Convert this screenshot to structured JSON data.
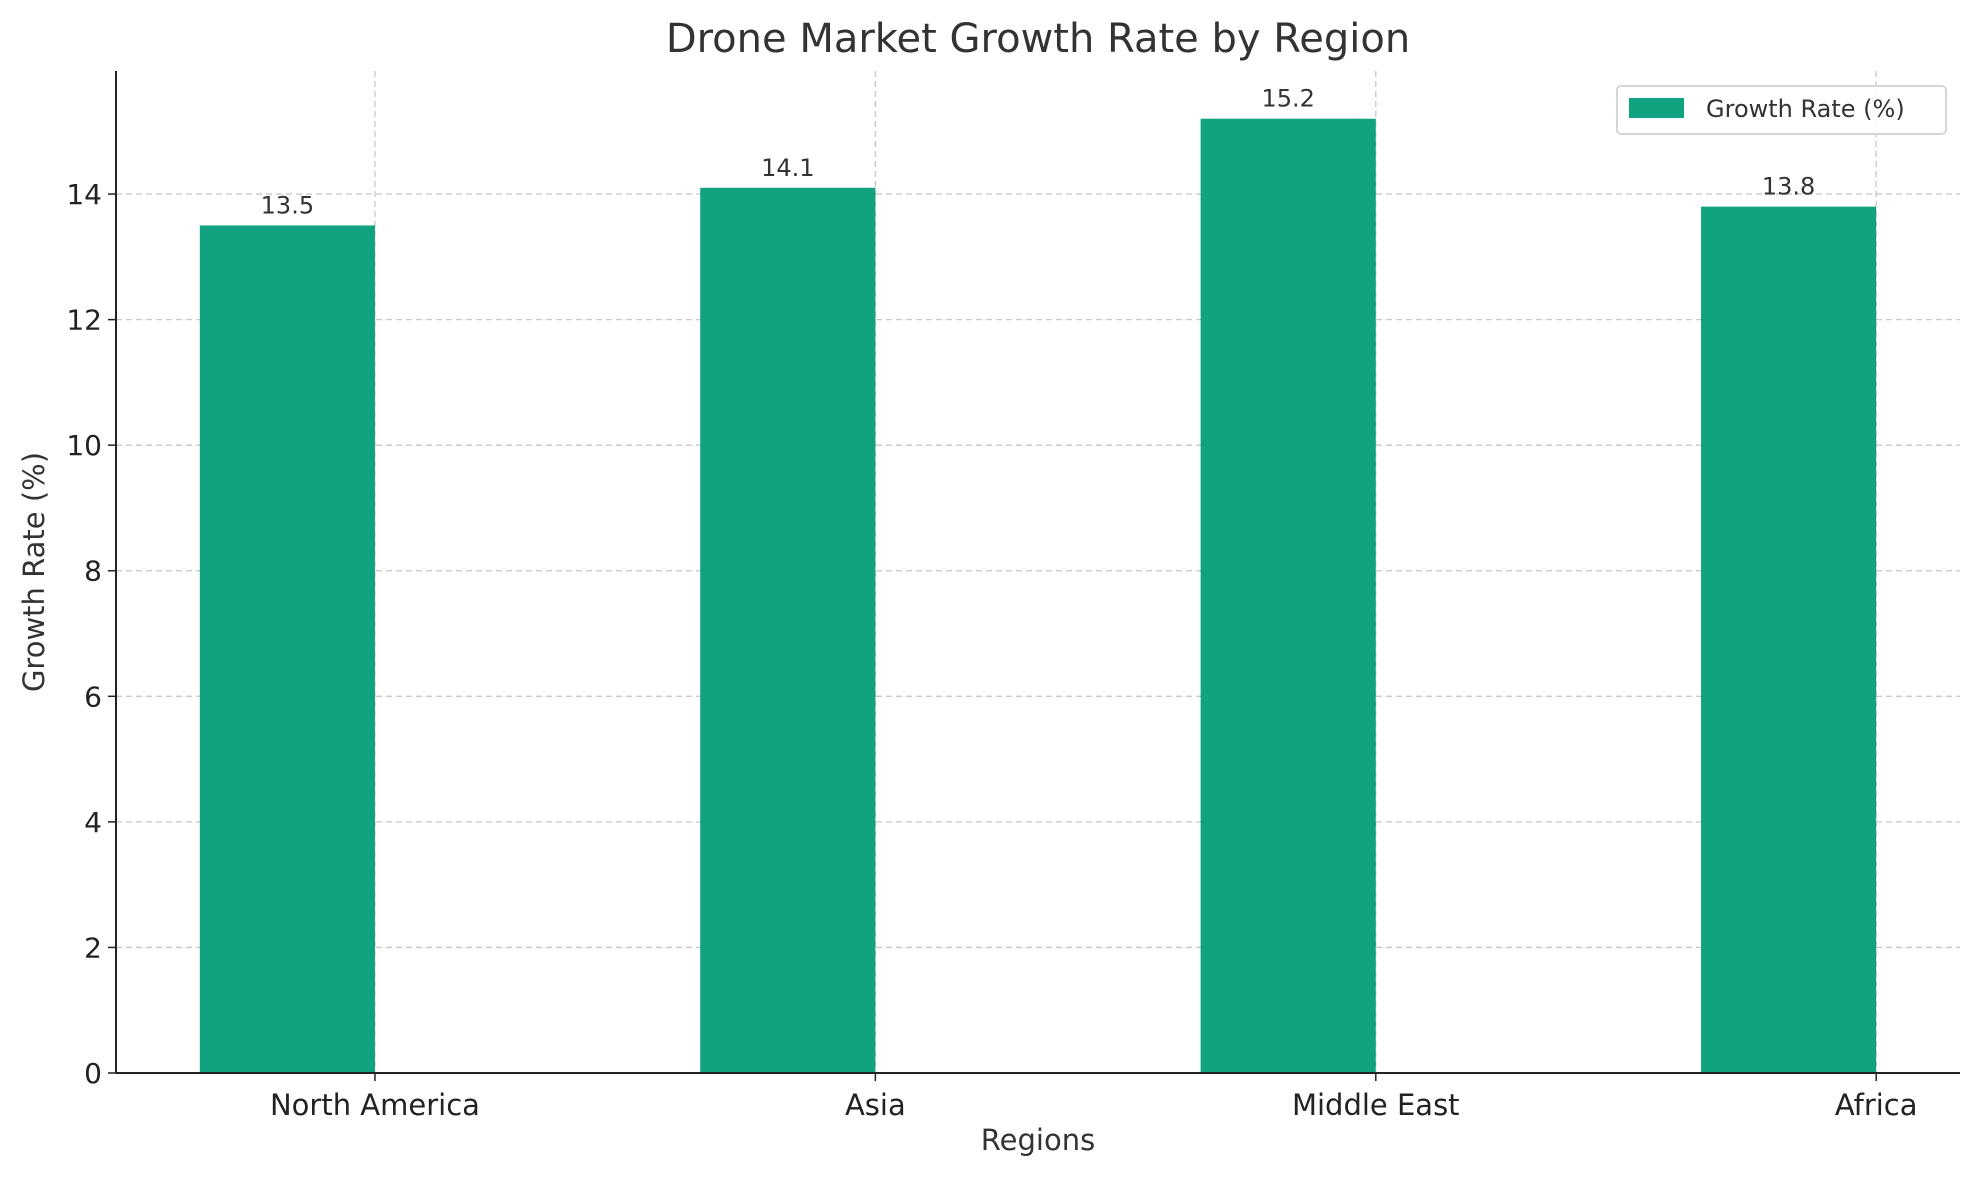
{
  "chart_data": {
    "type": "bar",
    "title": "Drone Market Growth Rate by Region",
    "xlabel": "Regions",
    "ylabel": "Growth Rate (%)",
    "categories": [
      "North America",
      "Asia",
      "Middle East",
      "Africa"
    ],
    "series": [
      {
        "name": "Growth Rate (%)",
        "values": [
          13.5,
          14.1,
          15.2,
          13.8
        ],
        "color": "#11a37f"
      }
    ],
    "data_labels": [
      "13.5",
      "14.1",
      "15.2",
      "13.8"
    ],
    "ylim": [
      0,
      15.96
    ],
    "yticks": [
      0,
      2,
      4,
      6,
      8,
      10,
      12,
      14
    ],
    "grid": true,
    "legend": "top-right"
  }
}
